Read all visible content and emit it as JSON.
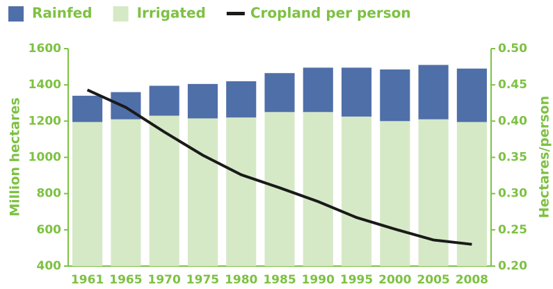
{
  "chart_data": {
    "type": "stacked-bar-line",
    "categories": [
      "1961",
      "1965",
      "1970",
      "1975",
      "1980",
      "1985",
      "1990",
      "1995",
      "2000",
      "2005",
      "2008"
    ],
    "series": [
      {
        "name": "Rainfed",
        "color": "#4f6fa9",
        "values": [
          145,
          150,
          165,
          190,
          200,
          215,
          245,
          270,
          285,
          300,
          295
        ]
      },
      {
        "name": "Irrigated",
        "color": "#d6e9c6",
        "values": [
          1195,
          1210,
          1230,
          1215,
          1220,
          1250,
          1250,
          1225,
          1200,
          1210,
          1195
        ]
      },
      {
        "name": "Cropland per person",
        "color": "#1a1a1a",
        "axis": "y2",
        "values": [
          0.443,
          0.419,
          0.385,
          0.353,
          0.326,
          0.308,
          0.289,
          0.267,
          0.251,
          0.236,
          0.23
        ]
      }
    ],
    "y_label": "Million hectares",
    "y2_label": "Hectares/person",
    "ylim": [
      400,
      1600
    ],
    "yticks": [
      400,
      600,
      800,
      1000,
      1200,
      1400,
      1600
    ],
    "y2lim": [
      0.2,
      0.5
    ],
    "y2ticks": [
      {
        "value": 0.2,
        "label": "0.20"
      },
      {
        "value": 0.25,
        "label": "0.25"
      },
      {
        "value": 0.3,
        "label": "0.30"
      },
      {
        "value": 0.35,
        "label": "0.35"
      },
      {
        "value": 0.4,
        "label": "0.40"
      },
      {
        "value": 0.45,
        "label": "0.45"
      },
      {
        "value": 0.5,
        "label": "0.50"
      }
    ]
  }
}
